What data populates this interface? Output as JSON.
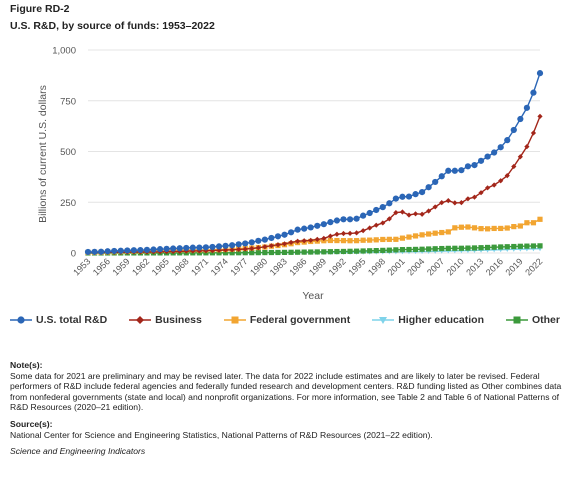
{
  "figure_label": "Figure RD-2",
  "title": "U.S. R&D, by source of funds: 1953–2022",
  "notes_heading": "Note(s):",
  "notes_text": "Some data for 2021 are preliminary and may be revised later. The data for 2022 include estimates and are likely to later be revised. Federal performers of R&D include federal agencies and federally funded research and development centers. R&D funding listed as Other combines data from nonfederal governments (state and local) and nonprofit organizations. For more information, see Table 2 and Table 6 of National Patterns of R&D Resources (2020–21 edition).",
  "source_heading": "Source(s):",
  "source_text": "National Center for Science and Engineering Statistics, National Patterns of R&D Resources (2021–22 edition).",
  "credit": "Science and Engineering Indicators",
  "colors": {
    "us_total": "#2b66b6",
    "business": "#a3261a",
    "federal": "#f2a531",
    "higher_ed": "#7fd3ea",
    "other": "#3c9a3c",
    "grid": "#e4e4e4",
    "text": "#555555"
  },
  "chart_data": {
    "type": "line",
    "title": "U.S. R&D, by source of funds: 1953–2022",
    "xlabel": "Year",
    "ylabel": "Billions of current U.S. dollars",
    "ylim": [
      0,
      1000
    ],
    "yticks": [
      0,
      250,
      500,
      750,
      1000
    ],
    "ytick_labels": [
      "0",
      "250",
      "500",
      "750",
      "1,000"
    ],
    "xticks": [
      1953,
      1956,
      1959,
      1962,
      1965,
      1968,
      1971,
      1974,
      1977,
      1980,
      1983,
      1986,
      1989,
      1992,
      1995,
      1998,
      2001,
      2004,
      2007,
      2010,
      2013,
      2016,
      2019,
      2022
    ],
    "grid": "horizontal",
    "legend_position": "bottom",
    "x": [
      1953,
      1954,
      1955,
      1956,
      1957,
      1958,
      1959,
      1960,
      1961,
      1962,
      1963,
      1964,
      1965,
      1966,
      1967,
      1968,
      1969,
      1970,
      1971,
      1972,
      1973,
      1974,
      1975,
      1976,
      1977,
      1978,
      1979,
      1980,
      1981,
      1982,
      1983,
      1984,
      1985,
      1986,
      1987,
      1988,
      1989,
      1990,
      1991,
      1992,
      1993,
      1994,
      1995,
      1996,
      1997,
      1998,
      1999,
      2000,
      2001,
      2002,
      2003,
      2004,
      2005,
      2006,
      2007,
      2008,
      2009,
      2010,
      2011,
      2012,
      2013,
      2014,
      2015,
      2016,
      2017,
      2018,
      2019,
      2020,
      2021,
      2022
    ],
    "series": [
      {
        "name": "U.S. total R&D",
        "marker": "circle",
        "values": [
          5.2,
          5.7,
          6.3,
          8.5,
          10,
          11.1,
          12.5,
          13.7,
          14.5,
          15.4,
          17.1,
          19,
          20.3,
          22,
          23.3,
          25,
          26.3,
          26.7,
          27.8,
          29.9,
          32.6,
          35.5,
          38.3,
          42.9,
          47.2,
          52.7,
          60.1,
          65.9,
          74,
          82,
          90,
          102,
          115,
          120,
          126,
          134,
          142,
          152,
          160,
          166,
          166,
          169,
          184,
          197,
          212,
          226,
          245,
          268,
          277,
          278,
          290,
          300,
          324,
          350,
          378,
          405,
          405,
          408,
          427,
          433,
          454,
          475,
          495,
          521,
          556,
          606,
          660,
          715,
          790,
          886
        ]
      },
      {
        "name": "Business",
        "marker": "diamond",
        "values": [
          2.2,
          2.4,
          2.5,
          3.3,
          3.4,
          3.6,
          3.9,
          4.5,
          4.7,
          5.1,
          5.5,
          5.9,
          6.6,
          7.4,
          8.1,
          9.1,
          10,
          10.4,
          10.8,
          11.7,
          13.3,
          14.9,
          15.8,
          17.7,
          19.3,
          22.1,
          25.7,
          30.9,
          35.9,
          40.7,
          45.3,
          52.3,
          57.9,
          60.3,
          62.5,
          67,
          72,
          83.2,
          92.3,
          96.2,
          96.5,
          99.2,
          110,
          123,
          137,
          148,
          168,
          199,
          202,
          187,
          193,
          191,
          207,
          227,
          248,
          258,
          247,
          248,
          267,
          275,
          297,
          321,
          335,
          356,
          381,
          426,
          474,
          524,
          591,
          673
        ]
      },
      {
        "name": "Federal government",
        "marker": "square",
        "values": [
          2.8,
          3.1,
          3.5,
          4.9,
          6.2,
          7.1,
          8.2,
          8.9,
          9.4,
          9.9,
          11.2,
          12.5,
          13,
          13.8,
          14.3,
          14.9,
          15,
          14.9,
          15.2,
          16.1,
          16.4,
          17.3,
          18.8,
          20.5,
          22.5,
          24.3,
          26.8,
          29.5,
          33.6,
          36.7,
          40.9,
          45.6,
          51.3,
          53.7,
          56.8,
          58.6,
          60.5,
          61.6,
          61.3,
          60.9,
          60.5,
          60.8,
          62.9,
          63.4,
          64.8,
          66.7,
          67.2,
          67.4,
          73.2,
          78.4,
          84.1,
          89.4,
          93.6,
          97.6,
          100.8,
          104,
          124,
          127,
          128,
          124,
          120,
          119,
          121,
          121,
          123,
          130,
          133,
          149,
          149,
          166
        ]
      },
      {
        "name": "Higher education",
        "marker": "triangle",
        "values": [
          0.1,
          0.1,
          0.1,
          0.1,
          0.1,
          0.1,
          0.1,
          0.1,
          0.1,
          0.1,
          0.1,
          0.2,
          0.2,
          0.2,
          0.2,
          0.3,
          0.3,
          0.3,
          0.4,
          0.4,
          0.4,
          0.5,
          0.5,
          0.6,
          0.6,
          0.7,
          0.8,
          0.9,
          1,
          1.1,
          1.2,
          1.3,
          1.5,
          1.7,
          1.9,
          2,
          2.2,
          2.4,
          2.6,
          2.8,
          3,
          3.2,
          3.5,
          3.8,
          4.1,
          4.5,
          4.8,
          5.2,
          5.7,
          6.2,
          6.6,
          7.1,
          7.6,
          8.3,
          9,
          9.7,
          10.5,
          11.2,
          11.9,
          12.6,
          13.6,
          14.4,
          15.2,
          16.1,
          17.2,
          18,
          18.8,
          19.5,
          20.5,
          21
        ]
      },
      {
        "name": "Other",
        "marker": "square",
        "values": [
          0.2,
          0.2,
          0.3,
          0.3,
          0.3,
          0.3,
          0.3,
          0.3,
          0.4,
          0.4,
          0.4,
          0.5,
          0.5,
          0.6,
          0.7,
          0.7,
          0.8,
          0.8,
          0.9,
          1,
          1,
          1.1,
          1.2,
          1.3,
          1.5,
          1.6,
          1.8,
          2.1,
          2.4,
          2.6,
          3,
          3.4,
          3.9,
          4.4,
          4.8,
          5.3,
          5.8,
          6.5,
          7.1,
          7.6,
          8.3,
          9,
          9.9,
          10.9,
          11.8,
          12.9,
          13.9,
          15.4,
          16.6,
          17.1,
          17.7,
          18.5,
          19.7,
          20.9,
          21.9,
          22.8,
          23.2,
          23.3,
          24.1,
          24.9,
          26.1,
          27.3,
          28.5,
          29.8,
          30.8,
          31.9,
          33,
          33.8,
          34.5,
          35.2
        ]
      }
    ]
  }
}
